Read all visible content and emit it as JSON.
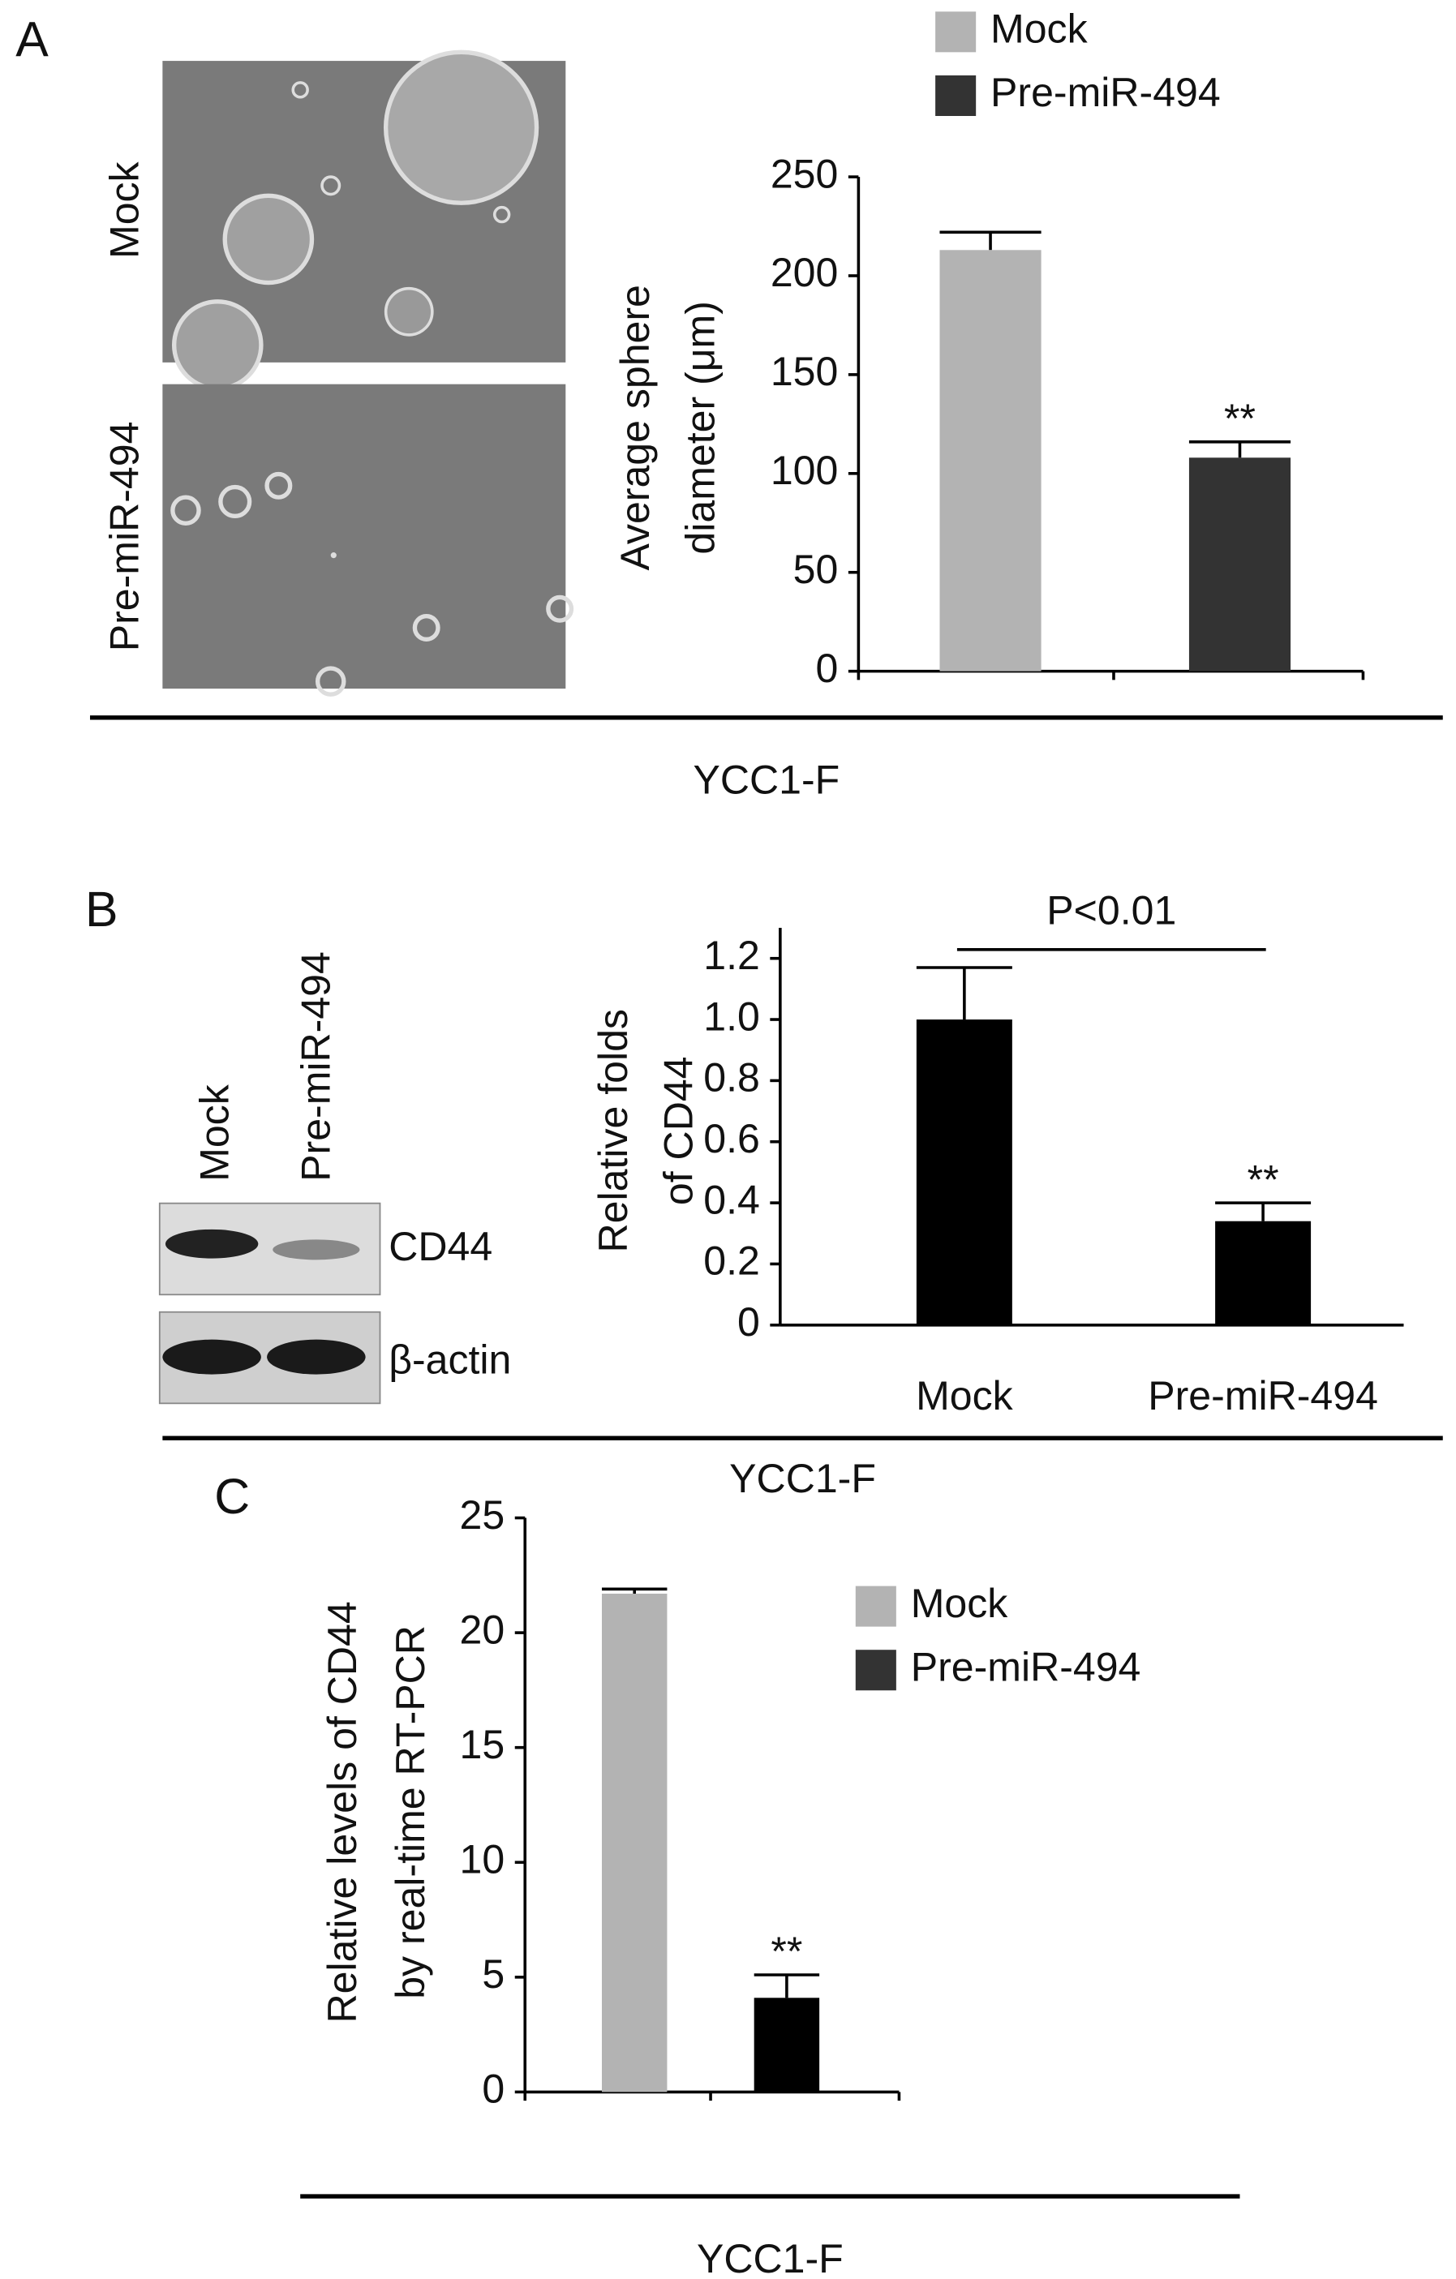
{
  "chart_data": [
    {
      "type": "bar",
      "panel_label": "A",
      "image_labels": [
        "Mock",
        "Pre-miR-494"
      ],
      "legend": [
        {
          "name": "Mock",
          "color": "#b3b3b3"
        },
        {
          "name": "Pre-miR-494",
          "color": "#333333"
        }
      ],
      "ylabel": [
        "Average sphere",
        "diameter (μm)"
      ],
      "categories": [
        null,
        null
      ],
      "values": [
        213,
        108
      ],
      "errors": [
        9,
        8
      ],
      "colors": [
        "#b3b3b3",
        "#333333"
      ],
      "annotations": [
        null,
        "**"
      ],
      "ylim": [
        0,
        250
      ],
      "yticks": [
        0,
        50,
        100,
        150,
        200,
        250
      ],
      "footer": "YCC1-F"
    },
    {
      "type": "bar",
      "panel_label": "B",
      "band_labels": [
        "CD44",
        "β-actin"
      ],
      "ylabel": [
        "Relative folds",
        "of CD44"
      ],
      "categories": [
        "Mock",
        "Pre-miR-494"
      ],
      "values": [
        1.0,
        0.34
      ],
      "errors": [
        0.17,
        0.06
      ],
      "colors": [
        "#000000",
        "#000000"
      ],
      "annotations": [
        null,
        "**"
      ],
      "pvalue_label": "P<0.01",
      "ylim": [
        0,
        1.3
      ],
      "yticks": [
        0,
        0.2,
        0.4,
        0.6,
        0.8,
        {
          "value": 1,
          "label": "1.0"
        },
        1.2
      ],
      "footer": "YCC1-F"
    },
    {
      "type": "bar",
      "panel_label": "C",
      "legend": [
        {
          "name": "Mock",
          "color": "#b3b3b3"
        },
        {
          "name": "Pre-miR-494",
          "color": "#333333"
        }
      ],
      "ylabel": [
        "Relative levels of CD44",
        "by real-time RT-PCR"
      ],
      "categories": [
        null,
        null
      ],
      "values": [
        21.7,
        4.1
      ],
      "errors": [
        0.2,
        1.0
      ],
      "colors": [
        "#b3b3b3",
        "#000000"
      ],
      "annotations": [
        null,
        "**"
      ],
      "ylim": [
        0,
        25
      ],
      "yticks": [
        0,
        5,
        10,
        15,
        20,
        25
      ],
      "footer": "YCC1-F"
    }
  ]
}
